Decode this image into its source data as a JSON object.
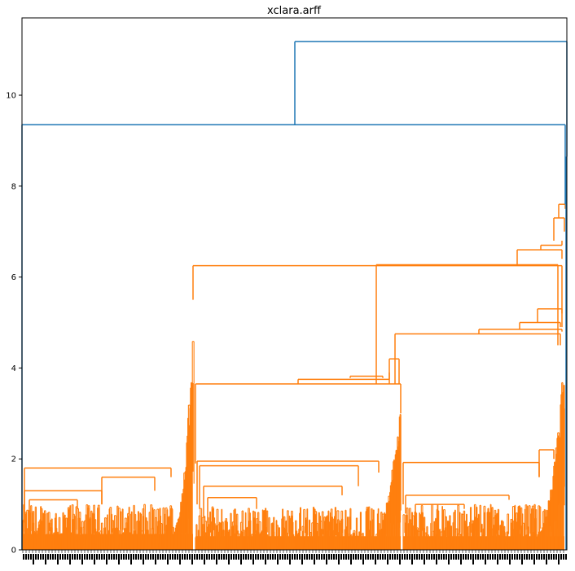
{
  "chart_data": {
    "type": "dendrogram",
    "title": "xclara.arff",
    "xlabel": "",
    "ylabel": "",
    "ylim": [
      0,
      11.7
    ],
    "yticks": [
      0,
      2,
      4,
      6,
      8,
      10
    ],
    "grid": false,
    "colors": {
      "cluster": "#ff7f0e",
      "above_threshold": "#1f77b4",
      "axis": "#000000"
    },
    "root_height": 11.18,
    "merges": [
      {
        "name": "root",
        "height": 11.18,
        "color": "#1f77b4"
      },
      {
        "name": "top-left-join",
        "height": 9.35,
        "color": "#1f77b4"
      },
      {
        "name": "right-blue-join",
        "height": 8.65,
        "color": "#1f77b4"
      },
      {
        "name": "orange-top",
        "height": 7.6,
        "color": "#ff7f0e"
      },
      {
        "name": "orange-mid-main",
        "height": 6.25,
        "color": "#ff7f0e"
      },
      {
        "name": "left-cluster",
        "height": 5.5,
        "color": "#ff7f0e"
      },
      {
        "name": "mid-right-main",
        "height": 4.75,
        "color": "#ff7f0e"
      },
      {
        "name": "middle-cluster",
        "height": 3.65,
        "color": "#ff7f0e"
      },
      {
        "name": "left-sub",
        "height": 1.8,
        "color": "#ff7f0e"
      },
      {
        "name": "middle-sub",
        "height": 1.95,
        "color": "#ff7f0e"
      },
      {
        "name": "right-sub",
        "height": 1.92,
        "color": "#ff7f0e"
      }
    ]
  }
}
